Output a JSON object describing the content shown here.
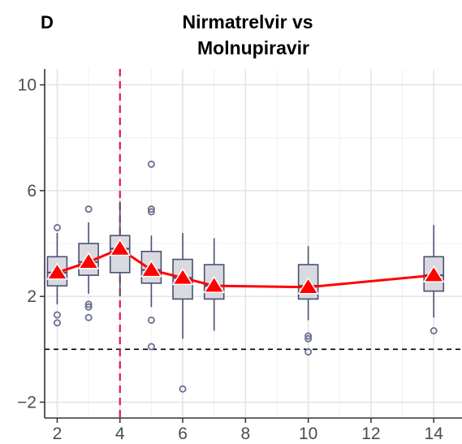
{
  "panel_tag": "D",
  "chart_data": {
    "type": "box",
    "title_lines": [
      "Nirmatrelvir vs",
      "Molnupiravir"
    ],
    "xlabel": "",
    "ylabel": "",
    "xlim": [
      1.6,
      14.9
    ],
    "ylim": [
      -2.6,
      10.6
    ],
    "x_ticks": [
      2,
      4,
      6,
      8,
      10,
      12,
      14
    ],
    "y_ticks": [
      -2,
      2,
      6,
      10
    ],
    "y_tick_labels": [
      "−2",
      "2",
      "6",
      "10"
    ],
    "grid": true,
    "reference_lines": [
      {
        "orientation": "horizontal",
        "value": 0,
        "style": "dashed",
        "color": "#000000"
      },
      {
        "orientation": "vertical",
        "value": 4,
        "style": "dashed",
        "color": "#e0155b"
      }
    ],
    "colors": {
      "box_fill": "#d9d9e0",
      "box_stroke": "#4a5070",
      "mean_line": "#ff0000",
      "mean_marker": "#ff0000"
    },
    "boxes": [
      {
        "x": 2,
        "whisker_low": 1.7,
        "q1": 2.4,
        "median": 2.9,
        "q3": 3.5,
        "whisker_high": 4.4,
        "outliers": [
          4.6,
          1.3,
          1.0
        ]
      },
      {
        "x": 3,
        "whisker_low": 2.1,
        "q1": 2.8,
        "median": 3.3,
        "q3": 4.0,
        "whisker_high": 4.8,
        "outliers": [
          5.3,
          1.7,
          1.6,
          1.2
        ]
      },
      {
        "x": 4,
        "whisker_low": 2.0,
        "q1": 2.9,
        "median": 3.8,
        "q3": 4.3,
        "whisker_high": 5.6,
        "outliers": []
      },
      {
        "x": 5,
        "whisker_low": 1.6,
        "q1": 2.5,
        "median": 3.0,
        "q3": 3.7,
        "whisker_high": 4.3,
        "outliers": [
          7.0,
          5.3,
          5.2,
          1.1,
          0.1
        ]
      },
      {
        "x": 6,
        "whisker_low": 0.4,
        "q1": 1.9,
        "median": 2.7,
        "q3": 3.4,
        "whisker_high": 4.4,
        "outliers": [
          -1.5
        ]
      },
      {
        "x": 7,
        "whisker_low": 0.7,
        "q1": 1.9,
        "median": 2.4,
        "q3": 3.2,
        "whisker_high": 4.2,
        "outliers": []
      },
      {
        "x": 10,
        "whisker_low": 1.1,
        "q1": 1.9,
        "median": 2.4,
        "q3": 3.2,
        "whisker_high": 3.9,
        "outliers": [
          0.5,
          0.4,
          -0.1
        ]
      },
      {
        "x": 14,
        "whisker_low": 1.2,
        "q1": 2.2,
        "median": 2.8,
        "q3": 3.5,
        "whisker_high": 4.7,
        "outliers": [
          0.7
        ]
      }
    ],
    "series": [
      {
        "values_x": [
          2,
          3,
          4,
          5,
          6,
          7,
          10,
          14
        ],
        "values": [
          2.9,
          3.3,
          3.8,
          3.0,
          2.7,
          2.4,
          2.35,
          2.8
        ]
      }
    ]
  }
}
